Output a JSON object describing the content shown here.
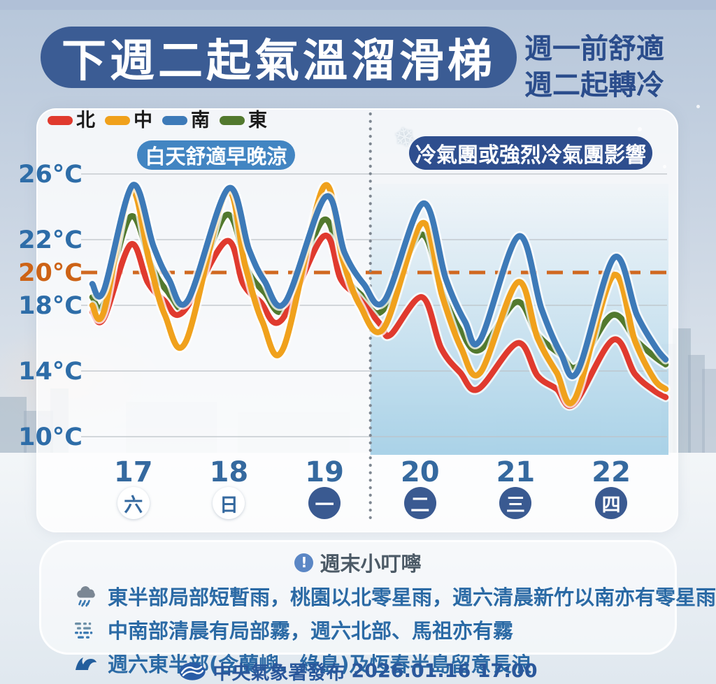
{
  "page": {
    "title": "下週二起氣溫溜滑梯",
    "subtitle_line1": "週一前舒適",
    "subtitle_line2": "週二起轉冷"
  },
  "colors": {
    "title_pill_bg": "#3b5c94",
    "subtitle_text": "#2b4d8c",
    "axis_label_blue": "#2e6da8",
    "threshold_orange": "#cd6316",
    "comfort_pill_bg": "#4285c2",
    "cold_pill_bg": "#2e4e8e",
    "cold_region_fill": "#9ccbe4"
  },
  "annotations": {
    "left_label": "白天舒適早晚涼",
    "right_label": "冷氣團或強烈冷氣團影響",
    "snowflake_icon": "❄"
  },
  "chart_data": {
    "type": "line",
    "title": "下週二起氣溫溜滑梯",
    "ylabel": "°C",
    "ylim": [
      10,
      26
    ],
    "yticks": [
      26,
      22,
      20,
      18,
      14,
      10
    ],
    "threshold": {
      "value": 20,
      "color": "#d06820",
      "style": "dashed"
    },
    "x_unit": "day",
    "xlim": [
      0,
      6
    ],
    "divider_x": 2.91,
    "cold_region": {
      "from_x": 2.91,
      "to_x": 6.0
    },
    "days": [
      {
        "date": "17",
        "dow": "六",
        "style": "light"
      },
      {
        "date": "18",
        "dow": "日",
        "style": "light"
      },
      {
        "date": "19",
        "dow": "一",
        "style": "dark"
      },
      {
        "date": "20",
        "dow": "二",
        "style": "dark"
      },
      {
        "date": "21",
        "dow": "三",
        "style": "dark"
      },
      {
        "date": "22",
        "dow": "四",
        "style": "dark"
      }
    ],
    "draw_order": [
      3,
      0,
      1,
      2
    ],
    "series": [
      {
        "name": "北",
        "name_en": "north",
        "color": "#e03a2e",
        "points": [
          [
            0,
            17.6
          ],
          [
            0.12,
            17.2
          ],
          [
            0.4,
            21.7
          ],
          [
            0.58,
            19.4
          ],
          [
            0.75,
            18.3
          ],
          [
            0.95,
            17.6
          ],
          [
            1.4,
            21.9
          ],
          [
            1.58,
            19.3
          ],
          [
            1.76,
            18.2
          ],
          [
            1.98,
            17.1
          ],
          [
            2.42,
            22.2
          ],
          [
            2.6,
            19.6
          ],
          [
            2.78,
            18.5
          ],
          [
            3.02,
            16.8
          ],
          [
            3.12,
            16.2
          ],
          [
            3.45,
            18.5
          ],
          [
            3.65,
            15.4
          ],
          [
            3.85,
            13.9
          ],
          [
            4.04,
            12.9
          ],
          [
            4.45,
            15.7
          ],
          [
            4.66,
            13.7
          ],
          [
            4.86,
            12.9
          ],
          [
            5.04,
            12.0
          ],
          [
            5.45,
            15.9
          ],
          [
            5.68,
            13.8
          ],
          [
            5.88,
            12.8
          ],
          [
            6.0,
            12.4
          ]
        ]
      },
      {
        "name": "中",
        "name_en": "central",
        "color": "#f0a11c",
        "points": [
          [
            0,
            18.0
          ],
          [
            0.12,
            17.6
          ],
          [
            0.4,
            25.0
          ],
          [
            0.6,
            20.6
          ],
          [
            0.76,
            17.4
          ],
          [
            0.98,
            15.8
          ],
          [
            1.4,
            24.9
          ],
          [
            1.6,
            20.4
          ],
          [
            1.78,
            17.0
          ],
          [
            2.0,
            15.4
          ],
          [
            2.42,
            25.2
          ],
          [
            2.62,
            20.8
          ],
          [
            2.8,
            18.0
          ],
          [
            3.05,
            16.6
          ],
          [
            3.45,
            23.0
          ],
          [
            3.66,
            18.6
          ],
          [
            3.86,
            15.4
          ],
          [
            4.06,
            13.9
          ],
          [
            4.45,
            19.4
          ],
          [
            4.66,
            16.0
          ],
          [
            4.86,
            13.9
          ],
          [
            5.05,
            12.3
          ],
          [
            5.45,
            19.8
          ],
          [
            5.68,
            15.8
          ],
          [
            5.88,
            13.5
          ],
          [
            6.0,
            12.9
          ]
        ]
      },
      {
        "name": "南",
        "name_en": "south",
        "color": "#3d7ab8",
        "points": [
          [
            0,
            19.3
          ],
          [
            0.12,
            18.9
          ],
          [
            0.42,
            25.3
          ],
          [
            0.64,
            21.6
          ],
          [
            0.8,
            19.6
          ],
          [
            1.0,
            18.3
          ],
          [
            1.42,
            25.1
          ],
          [
            1.64,
            21.4
          ],
          [
            1.8,
            19.5
          ],
          [
            2.02,
            18.2
          ],
          [
            2.44,
            24.6
          ],
          [
            2.64,
            21.2
          ],
          [
            2.84,
            19.3
          ],
          [
            3.06,
            18.3
          ],
          [
            3.46,
            24.2
          ],
          [
            3.7,
            19.6
          ],
          [
            3.9,
            17.0
          ],
          [
            4.06,
            15.9
          ],
          [
            4.46,
            22.2
          ],
          [
            4.7,
            17.8
          ],
          [
            4.9,
            15.1
          ],
          [
            5.08,
            14.0
          ],
          [
            5.46,
            20.9
          ],
          [
            5.7,
            17.4
          ],
          [
            5.9,
            15.4
          ],
          [
            6.0,
            14.7
          ]
        ]
      },
      {
        "name": "東",
        "name_en": "east",
        "color": "#52792e",
        "points": [
          [
            0,
            18.5
          ],
          [
            0.12,
            18.1
          ],
          [
            0.4,
            23.4
          ],
          [
            0.62,
            20.4
          ],
          [
            0.78,
            18.9
          ],
          [
            1.0,
            18.0
          ],
          [
            1.4,
            23.5
          ],
          [
            1.62,
            20.2
          ],
          [
            1.8,
            18.8
          ],
          [
            2.02,
            17.8
          ],
          [
            2.42,
            23.2
          ],
          [
            2.62,
            20.0
          ],
          [
            2.82,
            18.6
          ],
          [
            3.04,
            17.7
          ],
          [
            3.44,
            22.3
          ],
          [
            3.66,
            18.8
          ],
          [
            3.86,
            16.4
          ],
          [
            4.06,
            15.3
          ],
          [
            4.44,
            18.2
          ],
          [
            4.66,
            16.2
          ],
          [
            4.9,
            15.0
          ],
          [
            5.08,
            14.3
          ],
          [
            5.44,
            17.4
          ],
          [
            5.7,
            15.8
          ],
          [
            5.9,
            14.8
          ],
          [
            6.0,
            14.4
          ]
        ]
      }
    ]
  },
  "tips": {
    "header": "週末小叮嚀",
    "header_icon_glyph": "!",
    "items": [
      {
        "icon": "rain-cloud",
        "text": "東半部局部短暫雨，桃園以北零星雨，週六清晨新竹以南亦有零星雨"
      },
      {
        "icon": "fog",
        "text": "中南部清晨有局部霧，週六北部、馬祖亦有霧"
      },
      {
        "icon": "wave",
        "text": "週六東半部(含蘭嶼、綠島)及恆春半島留意長浪"
      }
    ]
  },
  "footer": {
    "agency": "中央氣象署發布",
    "datetime": "2026.01.16 17:00"
  }
}
